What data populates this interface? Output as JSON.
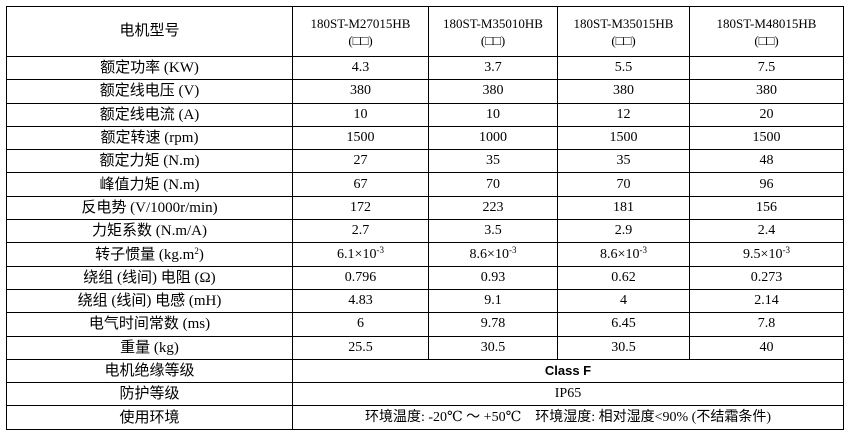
{
  "table": {
    "header": {
      "label": "电机型号",
      "models": [
        {
          "name": "180ST-M27015HB",
          "code": "(□□)"
        },
        {
          "name": "180ST-M35010HB",
          "code": "(□□)"
        },
        {
          "name": "180ST-M35015HB",
          "code": "(□□)"
        },
        {
          "name": "180ST-M48015HB",
          "code": "(□□)"
        }
      ]
    },
    "rows": [
      {
        "label": "额定功率 (KW)",
        "values": [
          "4.3",
          "3.7",
          "5.5",
          "7.5"
        ]
      },
      {
        "label": "额定线电压 (V)",
        "values": [
          "380",
          "380",
          "380",
          "380"
        ]
      },
      {
        "label": "额定线电流 (A)",
        "values": [
          "10",
          "10",
          "12",
          "20"
        ]
      },
      {
        "label": "额定转速 (rpm)",
        "values": [
          "1500",
          "1000",
          "1500",
          "1500"
        ]
      },
      {
        "label": "额定力矩 (N.m)",
        "values": [
          "27",
          "35",
          "35",
          "48"
        ]
      },
      {
        "label": "峰值力矩 (N.m)",
        "values": [
          "67",
          "70",
          "70",
          "96"
        ]
      },
      {
        "label": "反电势 (V/1000r/min)",
        "values": [
          "172",
          "223",
          "181",
          "156"
        ]
      },
      {
        "label": "力矩系数 (N.m/A)",
        "values": [
          "2.7",
          "3.5",
          "2.9",
          "2.4"
        ]
      },
      {
        "label": {
          "base": "转子惯量 (kg.m",
          "sup": "2",
          "tail": ")"
        },
        "values": [
          {
            "base": "6.1×10",
            "sup": "-3"
          },
          {
            "base": "8.6×10",
            "sup": "-3"
          },
          {
            "base": "8.6×10",
            "sup": "-3"
          },
          {
            "base": "9.5×10",
            "sup": "-3"
          }
        ]
      },
      {
        "label": "绕组 (线间) 电阻 (Ω)",
        "values": [
          "0.796",
          "0.93",
          "0.62",
          "0.273"
        ]
      },
      {
        "label": "绕组 (线间) 电感 (mH)",
        "values": [
          "4.83",
          "9.1",
          "4",
          "2.14"
        ]
      },
      {
        "label": "电气时间常数 (ms)",
        "values": [
          "6",
          "9.78",
          "6.45",
          "7.8"
        ]
      },
      {
        "label": "重量 (kg)",
        "values": [
          "25.5",
          "30.5",
          "30.5",
          "40"
        ]
      }
    ],
    "spans": [
      {
        "label": "电机绝缘等级",
        "value": "Class F"
      },
      {
        "label": "防护等级",
        "value": "IP65"
      },
      {
        "label": "使用环境",
        "value": "环境温度: -20℃ ～ +50℃    环境湿度: 相对湿度<90% (不结霜条件)"
      }
    ]
  }
}
